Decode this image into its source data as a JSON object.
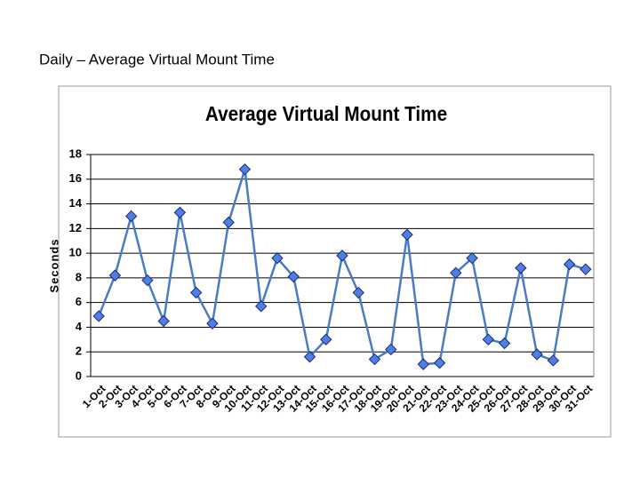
{
  "heading": "Daily – Average Virtual Mount Time",
  "chart_data": {
    "type": "line",
    "title": "Average Virtual Mount Time",
    "ylabel": "Seconds",
    "categories": [
      "1-Oct",
      "2-Oct",
      "3-Oct",
      "4-Oct",
      "5-Oct",
      "6-Oct",
      "7-Oct",
      "8-Oct",
      "9-Oct",
      "10-Oct",
      "11-Oct",
      "12-Oct",
      "13-Oct",
      "14-Oct",
      "15-Oct",
      "16-Oct",
      "17-Oct",
      "18-Oct",
      "19-Oct",
      "20-Oct",
      "21-Oct",
      "22-Oct",
      "23-Oct",
      "24-Oct",
      "25-Oct",
      "26-Oct",
      "27-Oct",
      "28-Oct",
      "29-Oct",
      "30-Oct",
      "31-Oct"
    ],
    "values": [
      4.9,
      8.2,
      13.0,
      7.8,
      4.5,
      13.3,
      6.8,
      4.3,
      12.5,
      16.8,
      5.7,
      9.6,
      8.1,
      1.6,
      3.0,
      9.8,
      6.8,
      1.4,
      2.2,
      11.5,
      1.0,
      1.1,
      8.4,
      9.6,
      3.0,
      2.7,
      8.8,
      1.8,
      1.3,
      9.1,
      8.7
    ],
    "color": "#4a7cc4",
    "marker_color": "#4f7fe6",
    "ylim": [
      0,
      18
    ],
    "yticks": [
      0,
      2,
      4,
      6,
      8,
      10,
      12,
      14,
      16,
      18
    ],
    "grid": true
  }
}
